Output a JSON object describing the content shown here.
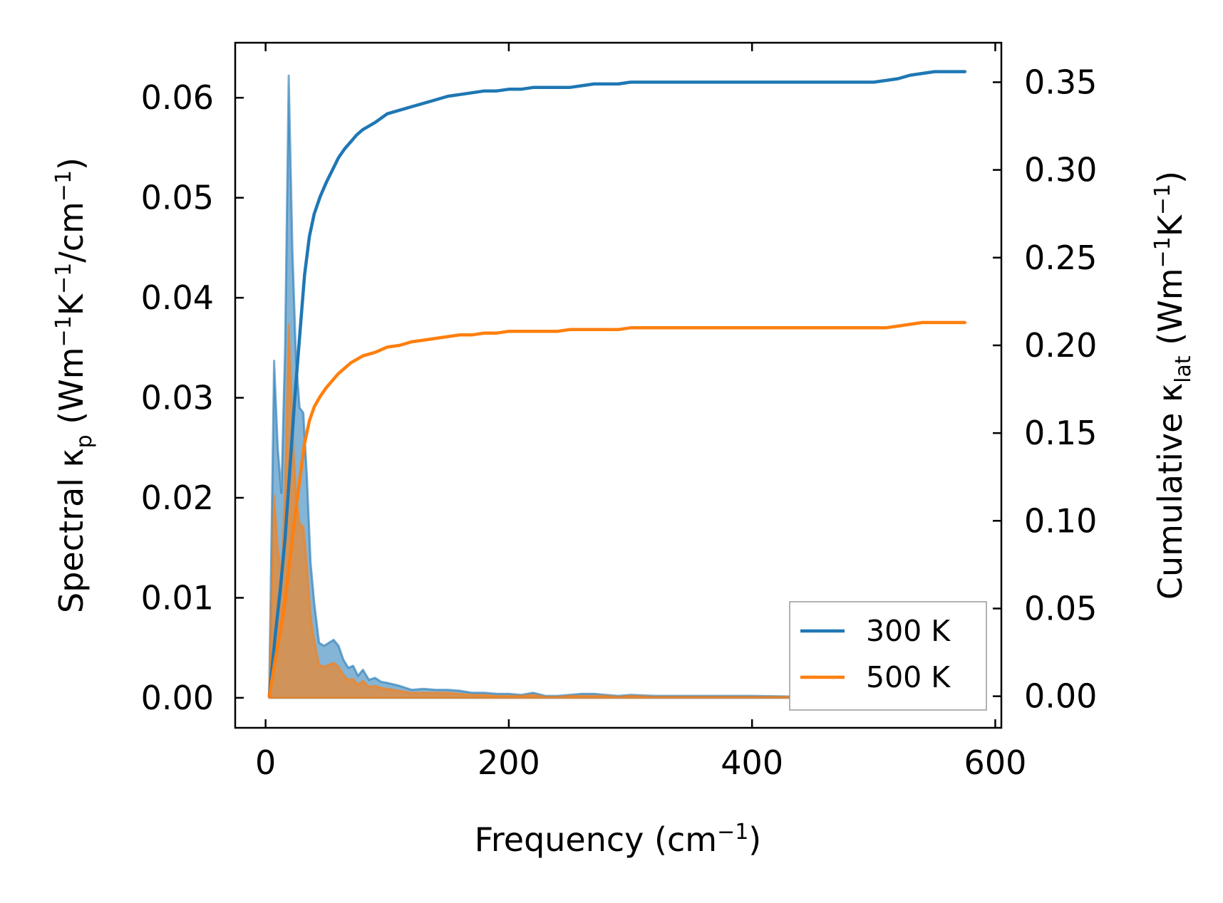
{
  "chart_data": {
    "type": "area",
    "title": "",
    "xlabel": {
      "text": "Frequency (cm",
      "sup": "−1",
      "tail": ")"
    },
    "ylabel_left": {
      "pre": "Spectral κ",
      "sub": "p",
      "mid": " (Wm",
      "sup1": "−1",
      "k": "K",
      "sup2": "−1",
      "unit": "/cm",
      "sup3": "−1",
      "tail": ")"
    },
    "ylabel_right": {
      "pre": "Cumulative κ",
      "sub": "lat",
      "mid": " (Wm",
      "sup1": "−1",
      "k": "K",
      "sup2": "−1",
      "tail": ")"
    },
    "xlim": [
      -25,
      605
    ],
    "ylim_left": [
      -0.003,
      0.0655
    ],
    "ylim_right": [
      -0.018,
      0.3725
    ],
    "x_ticks": [
      0,
      200,
      400,
      600
    ],
    "x_tick_labels": [
      "0",
      "200",
      "400",
      "600"
    ],
    "y_left_ticks": [
      0,
      0.01,
      0.02,
      0.03,
      0.04,
      0.05,
      0.06
    ],
    "y_left_tick_labels": [
      "0.00",
      "0.01",
      "0.02",
      "0.03",
      "0.04",
      "0.05",
      "0.06"
    ],
    "y_right_ticks": [
      0,
      0.05,
      0.1,
      0.15,
      0.2,
      0.25,
      0.3,
      0.35
    ],
    "y_right_tick_labels": [
      "0.00",
      "0.05",
      "0.10",
      "0.15",
      "0.20",
      "0.25",
      "0.30",
      "0.35"
    ],
    "legend": {
      "position": "lower-right",
      "entries": [
        "300 K",
        "500 K"
      ]
    },
    "colors": {
      "s300": "#1f77b4",
      "s500": "#ff7f0e"
    },
    "series": [
      {
        "name": "300 K",
        "spectral": {
          "x": [
            3,
            7,
            10,
            13,
            16,
            19,
            22,
            25,
            28,
            31,
            34,
            37,
            40,
            44,
            48,
            52,
            56,
            60,
            64,
            68,
            72,
            76,
            80,
            85,
            90,
            95,
            100,
            110,
            120,
            130,
            140,
            150,
            160,
            170,
            180,
            190,
            200,
            210,
            220,
            230,
            240,
            250,
            260,
            270,
            280,
            290,
            300,
            320,
            350,
            400,
            450,
            500,
            515,
            525,
            535,
            545,
            555,
            565,
            575
          ],
          "y": [
            0.001,
            0.0337,
            0.025,
            0.0205,
            0.035,
            0.0622,
            0.045,
            0.034,
            0.029,
            0.0285,
            0.022,
            0.0135,
            0.0095,
            0.0055,
            0.0052,
            0.0055,
            0.0058,
            0.0052,
            0.0038,
            0.003,
            0.0032,
            0.0022,
            0.0028,
            0.0018,
            0.002,
            0.0016,
            0.0015,
            0.0012,
            0.0008,
            0.0009,
            0.0008,
            0.0008,
            0.0007,
            0.0005,
            0.0005,
            0.0004,
            0.0004,
            0.0003,
            0.0005,
            0.0002,
            0.0002,
            0.0003,
            0.0004,
            0.0004,
            0.0003,
            0.0002,
            0.0003,
            0.0002,
            0.0002,
            0.0002,
            0.0001,
            0.0001,
            0.0005,
            0.001,
            0.0012,
            0.0008,
            0.0004,
            0.0005,
            0.0004
          ]
        },
        "cumulative": {
          "x": [
            3,
            8,
            12,
            16,
            20,
            24,
            28,
            32,
            36,
            40,
            45,
            50,
            55,
            60,
            65,
            70,
            75,
            80,
            90,
            100,
            110,
            120,
            130,
            140,
            150,
            160,
            170,
            180,
            190,
            200,
            210,
            220,
            230,
            240,
            250,
            260,
            270,
            280,
            290,
            300,
            320,
            350,
            400,
            450,
            500,
            510,
            520,
            530,
            540,
            550,
            560,
            570,
            575
          ],
          "y": [
            0.0,
            0.035,
            0.06,
            0.09,
            0.13,
            0.17,
            0.205,
            0.24,
            0.262,
            0.275,
            0.285,
            0.293,
            0.3,
            0.307,
            0.312,
            0.316,
            0.32,
            0.323,
            0.327,
            0.332,
            0.334,
            0.336,
            0.338,
            0.34,
            0.342,
            0.343,
            0.344,
            0.345,
            0.345,
            0.346,
            0.346,
            0.347,
            0.347,
            0.347,
            0.347,
            0.348,
            0.349,
            0.349,
            0.349,
            0.35,
            0.35,
            0.35,
            0.35,
            0.35,
            0.35,
            0.351,
            0.352,
            0.354,
            0.355,
            0.356,
            0.356,
            0.356,
            0.356
          ]
        }
      },
      {
        "name": "500 K",
        "spectral": {
          "x": [
            3,
            7,
            10,
            13,
            16,
            19,
            22,
            25,
            28,
            31,
            34,
            37,
            40,
            44,
            48,
            52,
            56,
            60,
            64,
            68,
            72,
            76,
            80,
            85,
            90,
            95,
            100,
            110,
            120,
            130,
            140,
            150,
            160,
            170,
            180,
            190,
            200,
            210,
            220,
            230,
            240,
            250,
            260,
            270,
            280,
            290,
            300,
            320,
            350,
            400,
            450,
            500,
            515,
            525,
            535,
            545,
            555,
            565,
            575
          ],
          "y": [
            0.0006,
            0.0202,
            0.015,
            0.0123,
            0.021,
            0.0373,
            0.027,
            0.0204,
            0.0174,
            0.0171,
            0.0132,
            0.0081,
            0.0057,
            0.0033,
            0.0031,
            0.0033,
            0.0035,
            0.0031,
            0.0023,
            0.0018,
            0.0019,
            0.0013,
            0.0017,
            0.0011,
            0.0012,
            0.001,
            0.0009,
            0.0007,
            0.0005,
            0.0005,
            0.0005,
            0.0005,
            0.0004,
            0.0003,
            0.0003,
            0.0002,
            0.0002,
            0.0002,
            0.0003,
            0.0001,
            0.0001,
            0.0002,
            0.0002,
            0.0002,
            0.0002,
            0.0001,
            0.0002,
            0.0001,
            0.0001,
            0.0001,
            0.0001,
            0.0001,
            0.0003,
            0.0006,
            0.0007,
            0.0005,
            0.0002,
            0.0003,
            0.0002
          ]
        },
        "cumulative": {
          "x": [
            3,
            8,
            12,
            16,
            20,
            24,
            28,
            32,
            36,
            40,
            45,
            50,
            55,
            60,
            65,
            70,
            75,
            80,
            90,
            100,
            110,
            120,
            130,
            140,
            150,
            160,
            170,
            180,
            190,
            200,
            210,
            220,
            230,
            240,
            250,
            260,
            270,
            280,
            290,
            300,
            320,
            350,
            400,
            450,
            500,
            510,
            520,
            530,
            540,
            550,
            560,
            570,
            575
          ],
          "y": [
            0.0,
            0.021,
            0.036,
            0.054,
            0.078,
            0.102,
            0.123,
            0.144,
            0.157,
            0.165,
            0.171,
            0.176,
            0.18,
            0.184,
            0.187,
            0.19,
            0.192,
            0.194,
            0.196,
            0.199,
            0.2,
            0.202,
            0.203,
            0.204,
            0.205,
            0.206,
            0.206,
            0.207,
            0.207,
            0.208,
            0.208,
            0.208,
            0.208,
            0.208,
            0.209,
            0.209,
            0.209,
            0.209,
            0.209,
            0.21,
            0.21,
            0.21,
            0.21,
            0.21,
            0.21,
            0.21,
            0.211,
            0.212,
            0.213,
            0.213,
            0.213,
            0.213,
            0.213
          ]
        }
      }
    ]
  }
}
